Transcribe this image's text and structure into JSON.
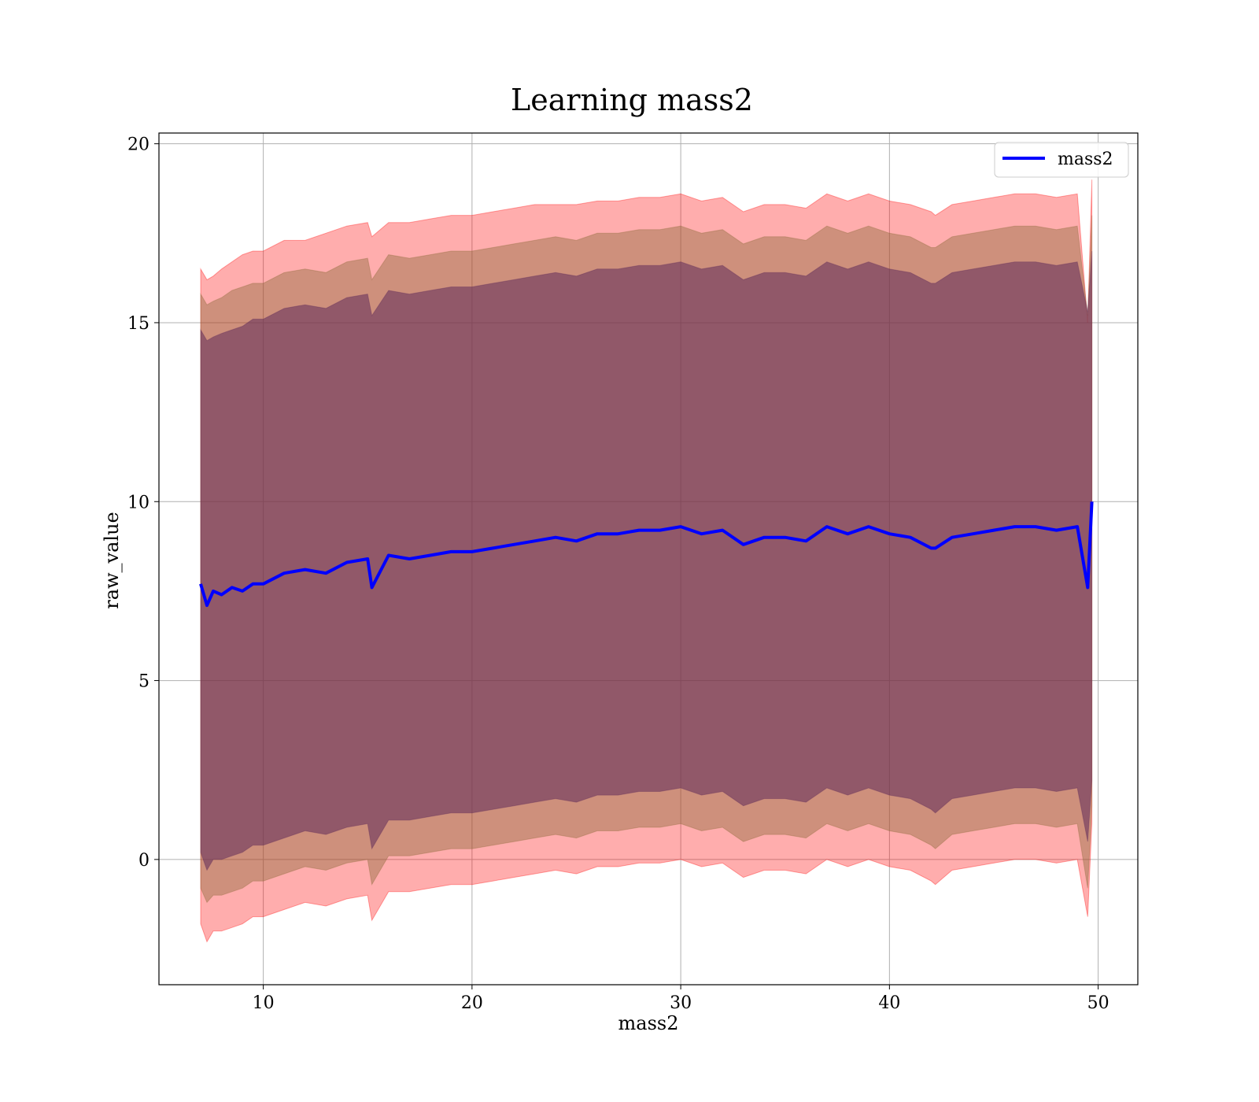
{
  "chart_data": {
    "type": "line",
    "title": "Learning mass2",
    "xlabel": "mass2",
    "ylabel": "raw_value",
    "xlim": [
      5,
      51.9
    ],
    "ylim": [
      -3.5,
      20.3
    ],
    "xticks": [
      10,
      20,
      30,
      40,
      50
    ],
    "yticks": [
      0,
      5,
      10,
      15,
      20
    ],
    "xtick_labels": [
      "10",
      "20",
      "30",
      "40",
      "50"
    ],
    "ytick_labels": [
      "0",
      "5",
      "10",
      "15",
      "20"
    ],
    "grid": true,
    "legend_position": "top-right",
    "colors": {
      "line": "#0000ff",
      "outer_band": "#ff0000",
      "middle_band": "#8b6a3a",
      "inner_band": "#5e2a5a",
      "grid": "#b0b0b0"
    },
    "series": [
      {
        "name": "mass2",
        "x": [
          7,
          7.3,
          7.6,
          8,
          8.5,
          9,
          9.5,
          10,
          11,
          12,
          13,
          14,
          15,
          15.2,
          16,
          17,
          18,
          19,
          20,
          21,
          22,
          23,
          24,
          25,
          26,
          27,
          28,
          29,
          30,
          31,
          32,
          33,
          34,
          35,
          36,
          37,
          38,
          39,
          40,
          41,
          42,
          42.2,
          43,
          44,
          45,
          46,
          47,
          48,
          49,
          49.5,
          49.7
        ],
        "y": [
          7.7,
          7.1,
          7.5,
          7.4,
          7.6,
          7.5,
          7.7,
          7.7,
          8.0,
          8.1,
          8.0,
          8.3,
          8.4,
          7.6,
          8.5,
          8.4,
          8.5,
          8.6,
          8.6,
          8.7,
          8.8,
          8.9,
          9.0,
          8.9,
          9.1,
          9.1,
          9.2,
          9.2,
          9.3,
          9.1,
          9.2,
          8.8,
          9.0,
          9.0,
          8.9,
          9.3,
          9.1,
          9.3,
          9.1,
          9.0,
          8.7,
          8.7,
          9.0,
          9.1,
          9.2,
          9.3,
          9.3,
          9.2,
          9.3,
          7.6,
          10.0
        ]
      }
    ],
    "bands": [
      {
        "level": "outer",
        "upper": [
          16.5,
          16.2,
          16.3,
          16.5,
          16.7,
          16.9,
          17.0,
          17.0,
          17.3,
          17.3,
          17.5,
          17.7,
          17.8,
          17.4,
          17.8,
          17.8,
          17.9,
          18.0,
          18.0,
          18.1,
          18.2,
          18.3,
          18.3,
          18.3,
          18.4,
          18.4,
          18.5,
          18.5,
          18.6,
          18.4,
          18.5,
          18.1,
          18.3,
          18.3,
          18.2,
          18.6,
          18.4,
          18.6,
          18.4,
          18.3,
          18.1,
          18.0,
          18.3,
          18.4,
          18.5,
          18.6,
          18.6,
          18.5,
          18.6,
          15.0,
          19.0
        ],
        "lower": [
          -1.8,
          -2.3,
          -2.0,
          -2.0,
          -1.9,
          -1.8,
          -1.6,
          -1.6,
          -1.4,
          -1.2,
          -1.3,
          -1.1,
          -1.0,
          -1.7,
          -0.9,
          -0.9,
          -0.8,
          -0.7,
          -0.7,
          -0.6,
          -0.5,
          -0.4,
          -0.3,
          -0.4,
          -0.2,
          -0.2,
          -0.1,
          -0.1,
          0.0,
          -0.2,
          -0.1,
          -0.5,
          -0.3,
          -0.3,
          -0.4,
          0.0,
          -0.2,
          0.0,
          -0.2,
          -0.3,
          -0.6,
          -0.7,
          -0.3,
          -0.2,
          -0.1,
          0.0,
          0.0,
          -0.1,
          0.0,
          -1.6,
          1.0
        ]
      },
      {
        "level": "middle",
        "upper": [
          15.8,
          15.5,
          15.6,
          15.7,
          15.9,
          16.0,
          16.1,
          16.1,
          16.4,
          16.5,
          16.4,
          16.7,
          16.8,
          16.2,
          16.9,
          16.8,
          16.9,
          17.0,
          17.0,
          17.1,
          17.2,
          17.3,
          17.4,
          17.3,
          17.5,
          17.5,
          17.6,
          17.6,
          17.7,
          17.5,
          17.6,
          17.2,
          17.4,
          17.4,
          17.3,
          17.7,
          17.5,
          17.7,
          17.5,
          17.4,
          17.1,
          17.1,
          17.4,
          17.5,
          17.6,
          17.7,
          17.7,
          17.6,
          17.7,
          15.2,
          18.0
        ],
        "lower": [
          -0.8,
          -1.2,
          -1.0,
          -1.0,
          -0.9,
          -0.8,
          -0.6,
          -0.6,
          -0.4,
          -0.2,
          -0.3,
          -0.1,
          0.0,
          -0.7,
          0.1,
          0.1,
          0.2,
          0.3,
          0.3,
          0.4,
          0.5,
          0.6,
          0.7,
          0.6,
          0.8,
          0.8,
          0.9,
          0.9,
          1.0,
          0.8,
          0.9,
          0.5,
          0.7,
          0.7,
          0.6,
          1.0,
          0.8,
          1.0,
          0.8,
          0.7,
          0.4,
          0.3,
          0.7,
          0.8,
          0.9,
          1.0,
          1.0,
          0.9,
          1.0,
          -0.8,
          1.5
        ]
      },
      {
        "level": "inner",
        "upper": [
          14.8,
          14.5,
          14.6,
          14.7,
          14.8,
          14.9,
          15.1,
          15.1,
          15.4,
          15.5,
          15.4,
          15.7,
          15.8,
          15.2,
          15.9,
          15.8,
          15.9,
          16.0,
          16.0,
          16.1,
          16.2,
          16.3,
          16.4,
          16.3,
          16.5,
          16.5,
          16.6,
          16.6,
          16.7,
          16.5,
          16.6,
          16.2,
          16.4,
          16.4,
          16.3,
          16.7,
          16.5,
          16.7,
          16.5,
          16.4,
          16.1,
          16.1,
          16.4,
          16.5,
          16.6,
          16.7,
          16.7,
          16.6,
          16.7,
          15.3,
          17.0
        ],
        "lower": [
          0.2,
          -0.3,
          0.0,
          0.0,
          0.1,
          0.2,
          0.4,
          0.4,
          0.6,
          0.8,
          0.7,
          0.9,
          1.0,
          0.3,
          1.1,
          1.1,
          1.2,
          1.3,
          1.3,
          1.4,
          1.5,
          1.6,
          1.7,
          1.6,
          1.8,
          1.8,
          1.9,
          1.9,
          2.0,
          1.8,
          1.9,
          1.5,
          1.7,
          1.7,
          1.6,
          2.0,
          1.8,
          2.0,
          1.8,
          1.7,
          1.4,
          1.3,
          1.7,
          1.8,
          1.9,
          2.0,
          2.0,
          1.9,
          2.0,
          0.5,
          2.2
        ]
      }
    ]
  }
}
